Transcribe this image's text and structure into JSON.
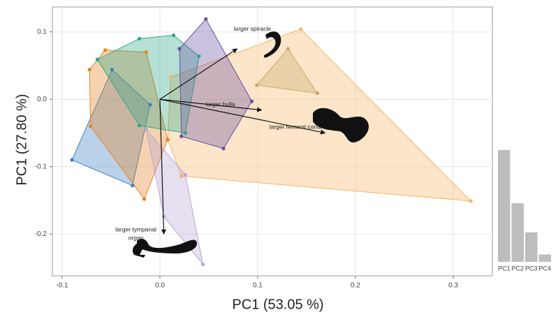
{
  "chart_data": [
    {
      "type": "scatter",
      "x_label": "PC1 (53.05 %)",
      "y_label": "PC1 (27.80 %)",
      "xlim": [
        -0.11,
        0.34
      ],
      "ylim": [
        -0.262,
        0.137
      ],
      "xticks": [
        -0.1,
        {
          "value": 0,
          "label": "0.0"
        },
        0.1,
        0.2,
        0.3
      ],
      "yticks": [
        0.1,
        {
          "value": 0,
          "label": "0.0"
        },
        -0.1,
        -0.2
      ],
      "grid": true,
      "series": [
        {
          "color": "#f5b461",
          "x": [
            0.011,
            0.144,
            0.318,
            0.022,
            0.008
          ],
          "y": [
            0.033,
            0.104,
            -0.151,
            -0.114,
            -0.06
          ]
        },
        {
          "color": "#c9a86a",
          "x": [
            0.099,
            0.131,
            0.161
          ],
          "y": [
            0.021,
            0.075,
            0.009
          ]
        },
        {
          "color": "#3a7fc1",
          "x": [
            -0.09,
            -0.049,
            -0.01,
            -0.028
          ],
          "y": [
            -0.09,
            0.044,
            -0.008,
            -0.128
          ]
        },
        {
          "color": "#e6821e",
          "x": [
            -0.072,
            -0.056,
            -0.014,
            0.008,
            -0.016,
            -0.071
          ],
          "y": [
            0.044,
            0.073,
            0.07,
            -0.06,
            -0.148,
            -0.04
          ]
        },
        {
          "color": "#2aa68a",
          "x": [
            -0.064,
            -0.021,
            0.014,
            0.04,
            0.026,
            -0.021
          ],
          "y": [
            0.059,
            0.09,
            0.095,
            0.064,
            -0.05,
            -0.039
          ]
        },
        {
          "color": "#6a4fa3",
          "x": [
            0.02,
            0.047,
            0.094,
            0.065,
            0.022
          ],
          "y": [
            0.075,
            0.119,
            -0.003,
            -0.073,
            -0.055
          ]
        },
        {
          "color": "#b9a6d6",
          "x": [
            -0.014,
            0.026,
            0.044,
            0.004
          ],
          "y": [
            -0.045,
            -0.112,
            -0.245,
            -0.174
          ]
        }
      ],
      "arrows": [
        {
          "lines": [
            "larger spiracle"
          ],
          "x": 0.079,
          "y": 0.075
        },
        {
          "lines": [
            "larger bulla"
          ],
          "x": 0.104,
          "y": -0.016
        },
        {
          "lines": [
            "larger femoral canal"
          ],
          "x": 0.169,
          "y": -0.05
        },
        {
          "lines": [
            "larger tympanal",
            "organ"
          ],
          "x": 0.004,
          "y": -0.2
        }
      ]
    },
    {
      "type": "bar",
      "color": "#bdbdbd",
      "categories": [
        "PC1",
        "PC2",
        "PC3",
        "PC4"
      ],
      "values": [
        53.05,
        27.8,
        14,
        3.5
      ],
      "ylim": [
        0,
        55
      ]
    }
  ]
}
